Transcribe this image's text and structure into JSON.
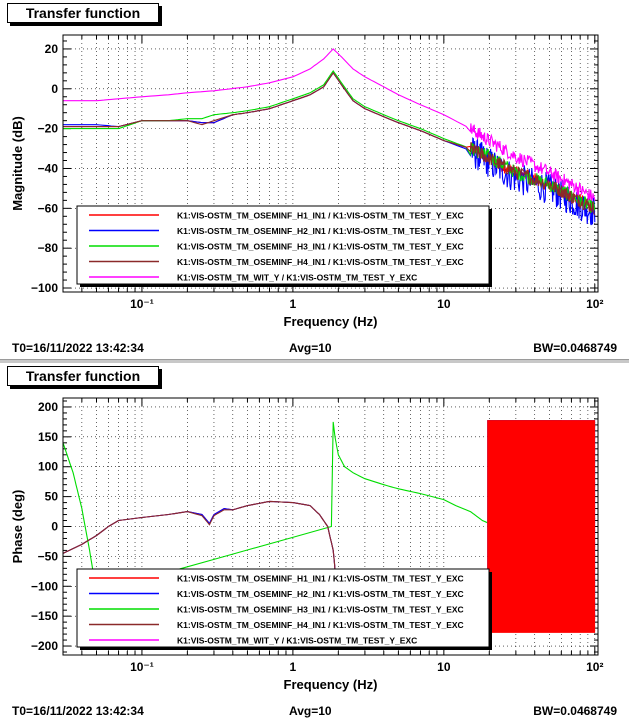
{
  "legend_entries": [
    "K1:VIS-OSTM_TM_OSEMINF_H1_IN1 / K1:VIS-OSTM_TM_TEST_Y_EXC",
    "K1:VIS-OSTM_TM_OSEMINF_H2_IN1 / K1:VIS-OSTM_TM_TEST_Y_EXC",
    "K1:VIS-OSTM_TM_OSEMINF_H3_IN1 / K1:VIS-OSTM_TM_TEST_Y_EXC",
    "K1:VIS-OSTM_TM_OSEMINF_H4_IN1 / K1:VIS-OSTM_TM_TEST_Y_EXC",
    "K1:VIS-OSTM_TM_WIT_Y / K1:VIS-OSTM_TM_TEST_Y_EXC"
  ],
  "series_colors": [
    "#ff0000",
    "#0000ff",
    "#00dd00",
    "#8b2a2a",
    "#ff00ff"
  ],
  "chart_data": [
    {
      "type": "line",
      "title": "Transfer function",
      "xlabel": "Frequency (Hz)",
      "ylabel": "Magnitude (dB)",
      "xscale": "log",
      "xlim": [
        0.03,
        105
      ],
      "ylim": [
        -102,
        27
      ],
      "xticks": [
        0.1,
        1,
        10,
        100
      ],
      "xtick_labels": [
        "10⁻¹",
        "1",
        "10",
        "10²"
      ],
      "yticks": [
        20,
        0,
        -20,
        -40,
        -60,
        -80,
        -100
      ],
      "ytick_labels": [
        "20",
        "0",
        "−20",
        "−40",
        "−60",
        "−80",
        "−100"
      ],
      "grid": true,
      "legend_position": "bottom-center",
      "series": [
        {
          "name": "K1:VIS-OSTM_TM_OSEMINF_H1_IN1 / K1:VIS-OSTM_TM_TEST_Y_EXC",
          "x": [
            0.03,
            0.05,
            0.07,
            0.1,
            0.15,
            0.2,
            0.25,
            0.3,
            0.4,
            0.5,
            0.7,
            1.0,
            1.3,
            1.6,
            1.85,
            2.1,
            2.5,
            3,
            4,
            5,
            7,
            10,
            15,
            20,
            30,
            50,
            70,
            100
          ],
          "y": [
            -19,
            -19,
            -19,
            -16,
            -16,
            -16,
            -17,
            -17,
            -13,
            -12,
            -10,
            -6,
            -3,
            1,
            8,
            2,
            -6,
            -10,
            -14,
            -17,
            -21,
            -26,
            -30,
            -35,
            -42,
            -48,
            -54,
            -60
          ]
        },
        {
          "name": "K1:VIS-OSTM_TM_OSEMINF_H2_IN1 / K1:VIS-OSTM_TM_TEST_Y_EXC",
          "x": [
            0.03,
            0.05,
            0.07,
            0.1,
            0.15,
            0.2,
            0.25,
            0.3,
            0.4,
            0.5,
            0.7,
            1.0,
            1.3,
            1.6,
            1.85,
            2.1,
            2.5,
            3,
            4,
            5,
            7,
            10,
            15,
            20,
            30,
            50,
            70,
            100
          ],
          "y": [
            -18,
            -18,
            -19,
            -16,
            -16,
            -16,
            -17,
            -17,
            -13,
            -12,
            -10,
            -6,
            -3,
            1,
            8,
            2,
            -6,
            -10,
            -14,
            -17,
            -21,
            -26,
            -31,
            -37,
            -45,
            -50,
            -56,
            -62
          ]
        },
        {
          "name": "K1:VIS-OSTM_TM_OSEMINF_H3_IN1 / K1:VIS-OSTM_TM_TEST_Y_EXC",
          "x": [
            0.03,
            0.05,
            0.07,
            0.1,
            0.15,
            0.2,
            0.25,
            0.3,
            0.4,
            0.5,
            0.7,
            1.0,
            1.3,
            1.6,
            1.85,
            2.1,
            2.5,
            3,
            4,
            5,
            7,
            10,
            15,
            20,
            30,
            50,
            70,
            100
          ],
          "y": [
            -20,
            -20,
            -20,
            -16,
            -16,
            -15,
            -15,
            -13,
            -12,
            -11,
            -9,
            -5,
            -2,
            2,
            9,
            3,
            -5,
            -9,
            -13,
            -16,
            -20,
            -25,
            -30,
            -34,
            -42,
            -48,
            -54,
            -60
          ]
        },
        {
          "name": "K1:VIS-OSTM_TM_OSEMINF_H4_IN1 / K1:VIS-OSTM_TM_TEST_Y_EXC",
          "x": [
            0.03,
            0.05,
            0.07,
            0.1,
            0.15,
            0.2,
            0.25,
            0.3,
            0.4,
            0.5,
            0.7,
            1.0,
            1.3,
            1.6,
            1.85,
            2.1,
            2.5,
            3,
            4,
            5,
            7,
            10,
            15,
            20,
            30,
            50,
            70,
            100
          ],
          "y": [
            -19,
            -19,
            -19,
            -16,
            -16,
            -16,
            -18,
            -16,
            -13,
            -12,
            -10,
            -6,
            -3,
            1,
            8,
            2,
            -6,
            -10,
            -14,
            -17,
            -21,
            -26,
            -30,
            -35,
            -42,
            -48,
            -54,
            -60
          ]
        },
        {
          "name": "K1:VIS-OSTM_TM_WIT_Y / K1:VIS-OSTM_TM_TEST_Y_EXC",
          "x": [
            0.03,
            0.05,
            0.07,
            0.1,
            0.15,
            0.2,
            0.3,
            0.5,
            0.7,
            1.0,
            1.3,
            1.6,
            1.85,
            2.1,
            2.5,
            3,
            4,
            5,
            7,
            10,
            15,
            20,
            30,
            50,
            70,
            100
          ],
          "y": [
            -6,
            -6,
            -5,
            -4,
            -3,
            -2,
            -1,
            1,
            3,
            6,
            10,
            15,
            20,
            16,
            10,
            6,
            1,
            -3,
            -8,
            -13,
            -20,
            -26,
            -34,
            -42,
            -48,
            -55
          ]
        }
      ]
    },
    {
      "type": "line",
      "title": "Transfer function",
      "xlabel": "Frequency (Hz)",
      "ylabel": "Phase (deg)",
      "xscale": "log",
      "xlim": [
        0.03,
        105
      ],
      "ylim": [
        -215,
        215
      ],
      "xticks": [
        0.1,
        1,
        10,
        100
      ],
      "xtick_labels": [
        "10⁻¹",
        "1",
        "10",
        "10²"
      ],
      "yticks": [
        200,
        150,
        100,
        50,
        0,
        -50,
        -100,
        -150,
        -200
      ],
      "ytick_labels": [
        "200",
        "150",
        "100",
        "50",
        "0",
        "−50",
        "−100",
        "−150",
        "−200"
      ],
      "grid": true,
      "legend_position": "bottom-center",
      "series": [
        {
          "name": "K1:VIS-OSTM_TM_OSEMINF_H1_IN1 / K1:VIS-OSTM_TM_TEST_Y_EXC",
          "x": [
            0.03,
            0.04,
            0.05,
            0.06,
            0.07,
            0.1,
            0.15,
            0.2,
            0.25,
            0.28,
            0.3,
            0.35,
            0.4,
            0.5,
            0.7,
            1.0,
            1.3,
            1.5,
            1.7,
            1.85,
            1.95,
            2.05
          ],
          "y": [
            -45,
            -30,
            -15,
            0,
            10,
            15,
            20,
            25,
            20,
            5,
            20,
            30,
            28,
            35,
            42,
            40,
            35,
            20,
            0,
            -40,
            -100,
            -150
          ]
        },
        {
          "name": "K1:VIS-OSTM_TM_OSEMINF_H2_IN1 / K1:VIS-OSTM_TM_TEST_Y_EXC",
          "x": [
            0.03,
            0.04,
            0.05,
            0.06,
            0.07,
            0.1,
            0.15,
            0.2,
            0.25,
            0.28,
            0.3,
            0.35,
            0.4,
            0.5,
            0.7,
            1.0,
            1.3,
            1.5,
            1.7,
            1.85,
            1.95,
            2.05
          ],
          "y": [
            -45,
            -30,
            -15,
            0,
            10,
            15,
            20,
            25,
            20,
            5,
            20,
            30,
            28,
            35,
            42,
            40,
            35,
            20,
            0,
            -40,
            -100,
            -150
          ]
        },
        {
          "name": "K1:VIS-OSTM_TM_OSEMINF_H3_IN1 / K1:VIS-OSTM_TM_TEST_Y_EXC",
          "x": [
            0.03,
            0.035,
            0.04,
            0.045,
            0.05,
            1.8,
            1.85,
            1.9,
            2.0,
            2.2,
            2.5,
            3,
            4,
            5,
            7,
            10,
            12,
            15,
            18,
            20
          ],
          "y": [
            140,
            90,
            30,
            -40,
            -110,
            0,
            175,
            150,
            120,
            100,
            90,
            80,
            70,
            63,
            55,
            45,
            35,
            25,
            10,
            5
          ]
        },
        {
          "name": "K1:VIS-OSTM_TM_OSEMINF_H4_IN1 / K1:VIS-OSTM_TM_TEST_Y_EXC",
          "x": [
            0.03,
            0.04,
            0.05,
            0.06,
            0.07,
            0.1,
            0.15,
            0.2,
            0.25,
            0.28,
            0.3,
            0.35,
            0.4,
            0.5,
            0.7,
            1.0,
            1.3,
            1.5,
            1.7,
            1.85,
            1.95,
            2.05
          ],
          "y": [
            -45,
            -30,
            -15,
            0,
            10,
            15,
            20,
            25,
            18,
            3,
            18,
            28,
            28,
            35,
            42,
            40,
            35,
            20,
            0,
            -40,
            -100,
            -150
          ]
        },
        {
          "name": "K1:VIS-OSTM_TM_WIT_Y / K1:VIS-OSTM_TM_TEST_Y_EXC",
          "x": [],
          "y": []
        }
      ]
    }
  ],
  "footer": {
    "t0": "T0=16/11/2022 13:42:34",
    "avg": "Avg=10",
    "bw": "BW=0.0468749"
  }
}
